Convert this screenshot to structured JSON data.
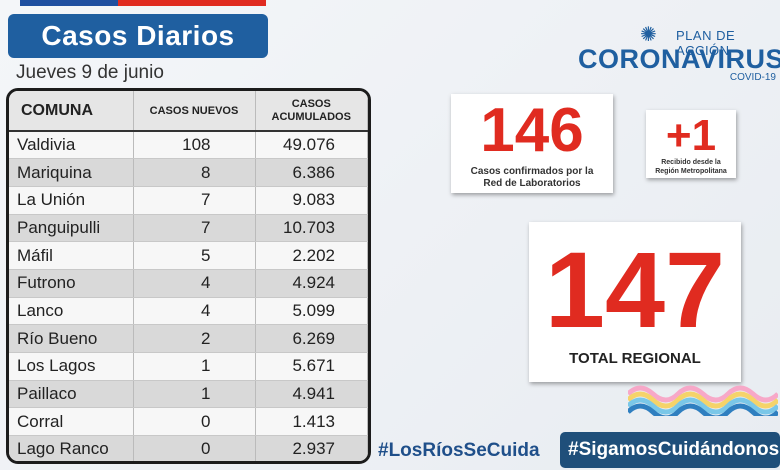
{
  "header": {
    "title": "Casos Diarios",
    "date": "Jueves 9 de junio"
  },
  "table": {
    "columns": [
      "COMUNA",
      "CASOS NUEVOS",
      "CASOS ACUMULADOS"
    ],
    "rows": [
      {
        "comuna": "Valdivia",
        "nuevos": "108",
        "acumulados": "49.076"
      },
      {
        "comuna": "Mariquina",
        "nuevos": "8",
        "acumulados": "6.386"
      },
      {
        "comuna": "La Unión",
        "nuevos": "7",
        "acumulados": "9.083"
      },
      {
        "comuna": "Panguipulli",
        "nuevos": "7",
        "acumulados": "10.703"
      },
      {
        "comuna": "Máfil",
        "nuevos": "5",
        "acumulados": "2.202"
      },
      {
        "comuna": "Futrono",
        "nuevos": "4",
        "acumulados": "4.924"
      },
      {
        "comuna": "Lanco",
        "nuevos": "4",
        "acumulados": "5.099"
      },
      {
        "comuna": "Río Bueno",
        "nuevos": "2",
        "acumulados": "6.269"
      },
      {
        "comuna": "Los Lagos",
        "nuevos": "1",
        "acumulados": "5.671"
      },
      {
        "comuna": "Paillaco",
        "nuevos": "1",
        "acumulados": "4.941"
      },
      {
        "comuna": "Corral",
        "nuevos": "0",
        "acumulados": "1.413"
      },
      {
        "comuna": "Lago Ranco",
        "nuevos": "0",
        "acumulados": "2.937"
      }
    ]
  },
  "logo": {
    "plan": "PLAN DE ACCIÓN",
    "name": "CORONAVIRUS",
    "covid": "COVID-19"
  },
  "stats": {
    "confirmed_number": "146",
    "confirmed_label": "Casos confirmados por la Red de Laboratorios",
    "plus_number": "+1",
    "plus_label": "Recibido desde la Región Metropolitana",
    "total_number": "147",
    "total_label": "TOTAL REGIONAL"
  },
  "footer": {
    "hashtag_left": "#LosRíosSeCuida",
    "hashtag_right": "#SigamosCuidándonos"
  },
  "colors": {
    "brand_blue": "#1f5fa0",
    "accent_red": "#e02b20"
  }
}
